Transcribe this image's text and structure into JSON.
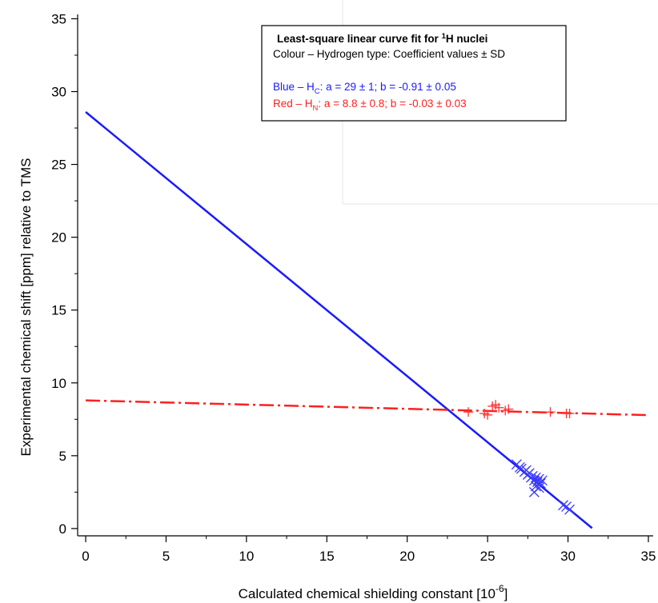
{
  "chart_data": {
    "type": "scatter",
    "xlabel": "Calculated chemical shielding constant [10",
    "xlabel_sup": "-6",
    "xlabel_end": "]",
    "ylabel": "Experimental chemical shift [ppm] relative to TMS",
    "xlim": [
      -0.5,
      35.3
    ],
    "ylim": [
      -0.5,
      35.3
    ],
    "x_ticks": [
      0,
      5,
      10,
      15,
      20,
      25,
      30,
      35
    ],
    "y_ticks": [
      0,
      5,
      10,
      15,
      20,
      25,
      30,
      35
    ],
    "x_tick_labels": [
      "0",
      "5",
      "10",
      "15",
      "20",
      "25",
      "30",
      "35"
    ],
    "y_tick_labels": [
      "0",
      "5",
      "10",
      "15",
      "20",
      "25",
      "30",
      "35"
    ],
    "grid": false,
    "legend": {
      "placement": "top-center",
      "title_pre": "Least-square linear curve fit for ",
      "title_sup": "1",
      "title_post": "H nuclei",
      "subtitle": "Colour – Hydrogen type: Coefficient values ± SD",
      "entries": [
        {
          "pre": "Blue – H",
          "sub": "C",
          "post": ": a = 29 ± 1; b = -0.91 ± 0.05",
          "color": "#1a1aff"
        },
        {
          "pre": "Red –  H",
          "sub": "N",
          "post": ": a = 8.8 ± 0.8; b = -0.03 ± 0.03",
          "color": "#ff2020"
        }
      ]
    },
    "series": [
      {
        "marker": "x",
        "color": "#3a3aff",
        "points": [
          [
            26.8,
            4.4
          ],
          [
            27.0,
            4.2
          ],
          [
            27.1,
            4.1
          ],
          [
            27.3,
            3.9
          ],
          [
            27.4,
            4.0
          ],
          [
            27.5,
            3.7
          ],
          [
            27.6,
            3.8
          ],
          [
            27.7,
            3.5
          ],
          [
            27.8,
            3.6
          ],
          [
            27.9,
            3.3
          ],
          [
            28.0,
            3.5
          ],
          [
            28.1,
            3.2
          ],
          [
            28.2,
            3.4
          ],
          [
            28.3,
            3.1
          ],
          [
            28.4,
            3.3
          ],
          [
            28.0,
            2.9
          ],
          [
            28.2,
            2.8
          ],
          [
            27.9,
            2.5
          ],
          [
            29.7,
            1.6
          ],
          [
            29.9,
            1.5
          ],
          [
            30.1,
            1.3
          ]
        ]
      },
      {
        "marker": "plus",
        "color": "#ff3030",
        "points": [
          [
            23.8,
            8.0
          ],
          [
            24.8,
            7.9
          ],
          [
            25.0,
            7.8
          ],
          [
            25.3,
            8.4
          ],
          [
            25.5,
            8.5
          ],
          [
            25.7,
            8.3
          ],
          [
            26.1,
            8.1
          ],
          [
            26.3,
            8.2
          ],
          [
            28.9,
            8.0
          ],
          [
            29.9,
            7.9
          ],
          [
            30.1,
            7.9
          ]
        ]
      }
    ],
    "fit_lines": [
      {
        "a": 28.6,
        "b": -0.907,
        "x_range": [
          0,
          31.5
        ],
        "color": "#1a1aff",
        "style": "solid"
      },
      {
        "a": 8.8,
        "b": -0.029,
        "x_range": [
          0,
          35
        ],
        "color": "#ff2020",
        "style": "dash-dot"
      }
    ]
  }
}
